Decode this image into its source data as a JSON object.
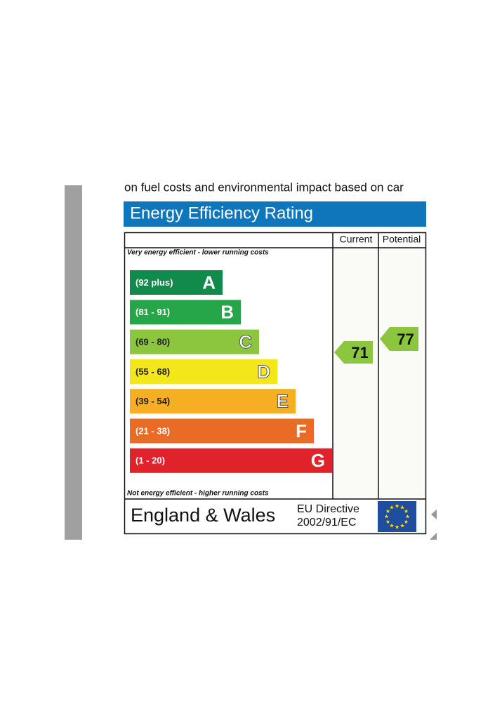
{
  "intro_text": "on fuel costs and environmental impact based on car",
  "header": {
    "title": "Energy Efficiency Rating"
  },
  "table": {
    "columns": [
      "Current",
      "Potential"
    ],
    "top_note": "Very energy efficient - lower running costs",
    "bottom_note": "Not energy efficient - higher running costs",
    "bands": [
      {
        "range": "(92 plus)",
        "letter": "A",
        "color": "#128a4c"
      },
      {
        "range": "(81 - 91)",
        "letter": "B",
        "color": "#27a649"
      },
      {
        "range": "(69 - 80)",
        "letter": "C",
        "color": "#8cc63f"
      },
      {
        "range": "(55 - 68)",
        "letter": "D",
        "color": "#f3e61a"
      },
      {
        "range": "(39 - 54)",
        "letter": "E",
        "color": "#f6ae22"
      },
      {
        "range": "(21 - 38)",
        "letter": "F",
        "color": "#ea6b26"
      },
      {
        "range": "(1 - 20)",
        "letter": "G",
        "color": "#e0222b"
      }
    ],
    "current_rating": 71,
    "potential_rating": 77
  },
  "footer": {
    "region": "England & Wales",
    "directive": [
      "EU Directive",
      "2002/91/EC"
    ]
  }
}
